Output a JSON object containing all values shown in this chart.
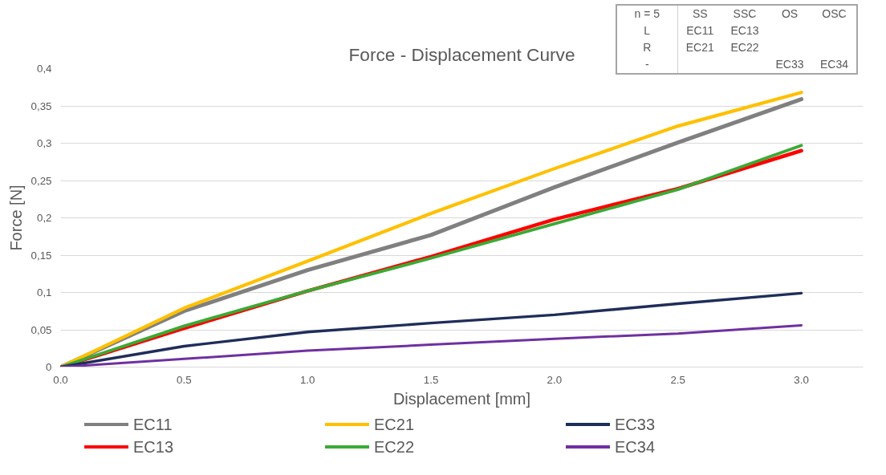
{
  "chart_data": {
    "type": "line",
    "title": "Force - Displacement Curve",
    "xlabel": "Displacement [mm]",
    "ylabel": "Force [N]",
    "x": [
      0,
      0.5,
      1.0,
      1.5,
      2.0,
      2.5,
      3.0
    ],
    "xlim": [
      0,
      3.25
    ],
    "xticks": [
      {
        "value": 0,
        "label": "0.0"
      },
      {
        "value": 0.5,
        "label": "0.5"
      },
      {
        "value": 1,
        "label": "1.0"
      },
      {
        "value": 1.5,
        "label": "1.5"
      },
      {
        "value": 2,
        "label": "2.0"
      },
      {
        "value": 2.5,
        "label": "2.5"
      },
      {
        "value": 3,
        "label": "3.0"
      }
    ],
    "ylim": [
      0,
      0.4
    ],
    "yticks": [
      0,
      {
        "value": 0.05,
        "label": "0,05"
      },
      {
        "value": 0.1,
        "label": "0,1"
      },
      {
        "value": 0.15,
        "label": "0,15"
      },
      {
        "value": 0.2,
        "label": "0,2"
      },
      {
        "value": 0.25,
        "label": "0,25"
      },
      {
        "value": 0.3,
        "label": "0,3"
      },
      {
        "value": 0.35,
        "label": "0,35"
      },
      {
        "value": 0.4,
        "label": "0,4"
      }
    ],
    "grid": "y",
    "legend": "bottom",
    "marker": "none",
    "line_style": "solid",
    "series": [
      {
        "name": "EC11",
        "color": "#808080",
        "values": [
          0,
          0.075,
          0.13,
          0.177,
          0.241,
          0.301,
          0.359
        ]
      },
      {
        "name": "EC13",
        "color": "#ff0000",
        "values": [
          0,
          0.052,
          0.102,
          0.148,
          0.198,
          0.239,
          0.29
        ]
      },
      {
        "name": "EC21",
        "color": "#ffc000",
        "values": [
          0,
          0.079,
          0.142,
          0.206,
          0.266,
          0.323,
          0.368
        ]
      },
      {
        "name": "EC22",
        "color": "#3aaa35",
        "values": [
          0,
          0.055,
          0.102,
          0.146,
          0.192,
          0.238,
          0.297
        ]
      },
      {
        "name": "EC33",
        "color": "#1f2d5a",
        "values": [
          0,
          0.028,
          0.047,
          0.059,
          0.07,
          0.085,
          0.099
        ]
      },
      {
        "name": "EC34",
        "color": "#7030a0",
        "values": [
          0,
          0.011,
          0.022,
          0.03,
          0.038,
          0.045,
          0.056
        ]
      }
    ],
    "annotations": [
      "n = 5",
      "SS",
      "SSC",
      "OS",
      "OSC",
      "L",
      "EC11",
      "EC13",
      null,
      null,
      "R",
      "EC21",
      "EC22",
      null,
      null,
      "-",
      null,
      null,
      "EC33",
      "EC34"
    ]
  }
}
